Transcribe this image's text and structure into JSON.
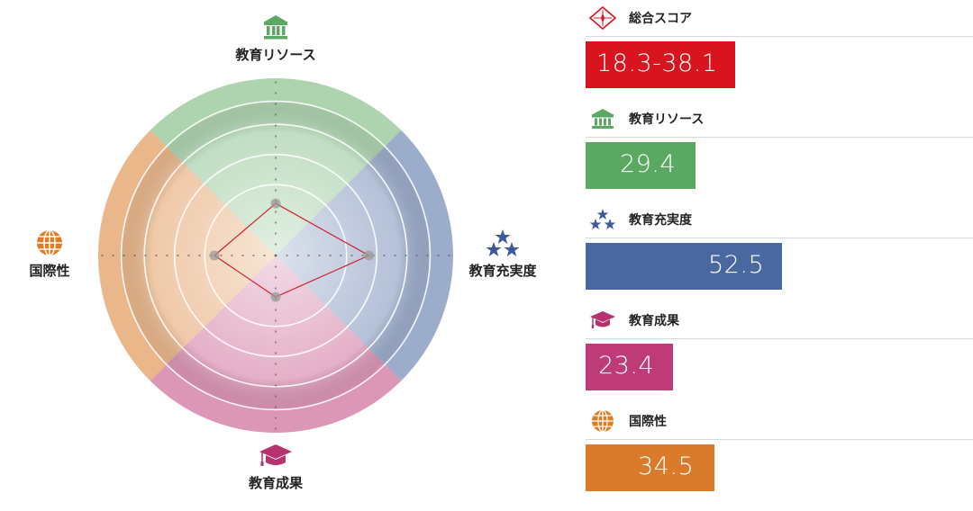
{
  "chart_data": {
    "type": "radar",
    "axes": [
      {
        "key": "resources",
        "label": "教育リソース",
        "value": 29.4,
        "color": "#6aaf6e",
        "icon": "institution-icon"
      },
      {
        "key": "engagement",
        "label": "教育充実度",
        "value": 52.5,
        "color": "#4a68a0",
        "icon": "stars-icon"
      },
      {
        "key": "outcomes",
        "label": "教育成果",
        "value": 23.4,
        "color": "#c0407a",
        "icon": "graduation-cap-icon"
      },
      {
        "key": "international",
        "label": "国際性",
        "value": 34.5,
        "color": "#d97b2b",
        "icon": "globe-icon"
      }
    ],
    "range": [
      0,
      100
    ],
    "grid": true,
    "line_color": "#d0202c"
  },
  "scores": [
    {
      "label": "総合スコア",
      "value": "18.3-38.1",
      "color": "#d8141e",
      "icon": "compass-icon",
      "fraction": 0.385
    },
    {
      "label": "教育リソース",
      "value": "29.4",
      "color": "#5aa861",
      "icon": "institution-icon",
      "fraction": 0.284
    },
    {
      "label": "教育充実度",
      "value": "52.5",
      "color": "#4a68a0",
      "icon": "stars-icon",
      "fraction": 0.505
    },
    {
      "label": "教育成果",
      "value": "23.4",
      "color": "#be3b78",
      "icon": "graduation-cap-icon",
      "fraction": 0.225
    },
    {
      "label": "国際性",
      "value": "34.5",
      "color": "#d97b2b",
      "icon": "globe-icon",
      "fraction": 0.332
    }
  ]
}
